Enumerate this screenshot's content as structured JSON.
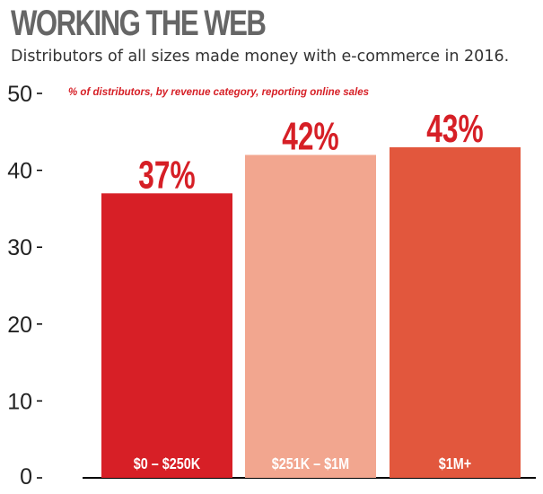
{
  "chart_data": {
    "type": "bar",
    "title": "WORKING THE WEB",
    "subtitle": "Distributors of all sizes made money with e-commerce in 2016.",
    "annotation": "% of distributors, by revenue category, reporting online sales",
    "categories": [
      "$0 – $250K",
      "$251K – $1M",
      "$1M+"
    ],
    "values": [
      37,
      42,
      43
    ],
    "data_labels": [
      "37%",
      "42%",
      "43%"
    ],
    "colors": [
      "#d71f26",
      "#f2a68f",
      "#e2573d"
    ],
    "ylim": [
      0,
      50
    ],
    "yticks": [
      0,
      10,
      20,
      30,
      40,
      50
    ],
    "grid": false,
    "legend": "none"
  }
}
